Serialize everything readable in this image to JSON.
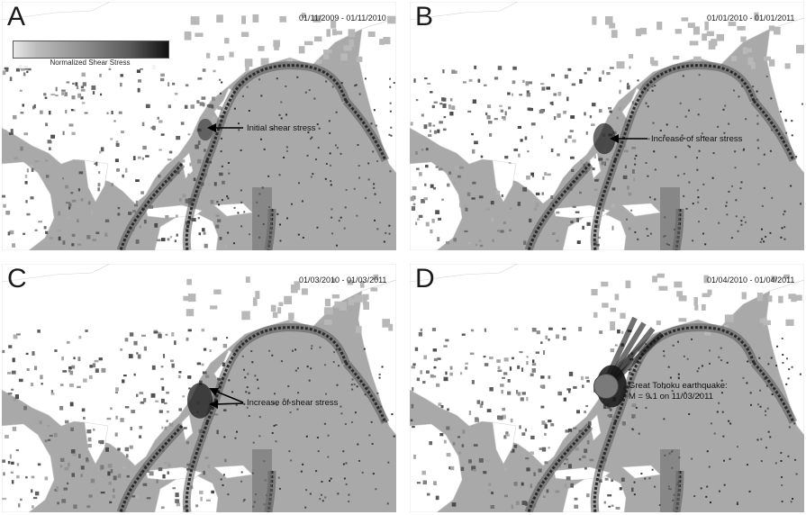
{
  "panels": [
    {
      "letter": "A",
      "date_range": "01/11/2009 - 01/11/2010",
      "legend": {
        "label": "Normalized Shear Stress"
      },
      "annotation": "Initial shear stress"
    },
    {
      "letter": "B",
      "date_range": "01/01/2010 - 01/01/2011",
      "annotation": "Increase of shear stress"
    },
    {
      "letter": "C",
      "date_range": "01/03/2010 - 01/03/2011",
      "annotation": "Increase of shear stress"
    },
    {
      "letter": "D",
      "date_range": "01/04/2010 - 01/04/2011",
      "annotation_line1": "Great Tohoku earthquake:",
      "annotation_line2": "M = 9.1 on 11/03/2011"
    }
  ],
  "colors": {
    "ocean": "#a9a9a9",
    "land": "#ffffff",
    "stress_low": "#8a8a8a",
    "stress_high": "#1a1a1a",
    "earthquake_marker": "#7a7a7a"
  },
  "icons": [
    "arrow-icon",
    "earthquake-marker-icon"
  ]
}
